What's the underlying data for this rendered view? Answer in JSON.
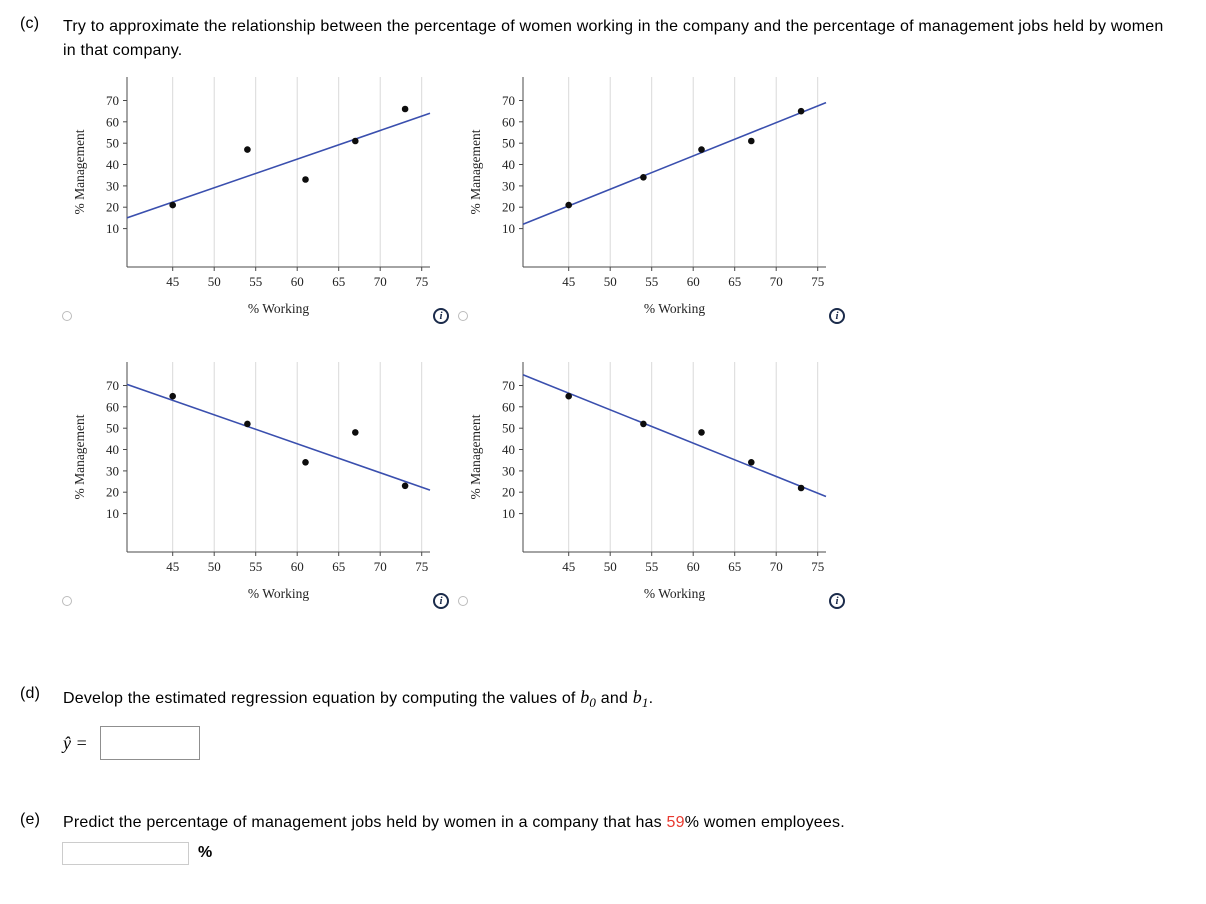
{
  "colors": {
    "trend": "#3a4fae",
    "point": "#0d0d0d",
    "grid": "#d9d9d9",
    "axis": "#4a4a4a",
    "highlight": "#e8392f"
  },
  "icons": {
    "info_glyph": "i"
  },
  "part_c": {
    "label": "(c)",
    "text": "Try to approximate the relationship between the percentage of women working in the company and the percentage of management jobs held by women in that company."
  },
  "chart_data": [
    {
      "type": "scatter",
      "xlabel": "% Working",
      "ylabel": "% Management",
      "xticks": [
        45,
        50,
        55,
        60,
        65,
        70,
        75
      ],
      "yticks": [
        10,
        20,
        30,
        40,
        50,
        60,
        70
      ],
      "xlim": [
        39.5,
        76
      ],
      "ylim": [
        -8,
        81
      ],
      "points": [
        [
          45,
          21
        ],
        [
          54,
          47
        ],
        [
          61,
          33
        ],
        [
          67,
          51
        ],
        [
          73,
          66
        ]
      ],
      "trend": {
        "x": [
          39.5,
          76
        ],
        "y": [
          15,
          64
        ]
      }
    },
    {
      "type": "scatter",
      "xlabel": "% Working",
      "ylabel": "% Management",
      "xticks": [
        45,
        50,
        55,
        60,
        65,
        70,
        75
      ],
      "yticks": [
        10,
        20,
        30,
        40,
        50,
        60,
        70
      ],
      "xlim": [
        39.5,
        76
      ],
      "ylim": [
        -8,
        81
      ],
      "points": [
        [
          45,
          21
        ],
        [
          54,
          34
        ],
        [
          61,
          47
        ],
        [
          67,
          51
        ],
        [
          73,
          65
        ]
      ],
      "trend": {
        "x": [
          39.5,
          76
        ],
        "y": [
          12,
          69
        ]
      }
    },
    {
      "type": "scatter",
      "xlabel": "% Working",
      "ylabel": "% Management",
      "xticks": [
        45,
        50,
        55,
        60,
        65,
        70,
        75
      ],
      "yticks": [
        10,
        20,
        30,
        40,
        50,
        60,
        70
      ],
      "xlim": [
        39.5,
        76
      ],
      "ylim": [
        -8,
        81
      ],
      "points": [
        [
          45,
          65
        ],
        [
          54,
          52
        ],
        [
          61,
          34
        ],
        [
          67,
          48
        ],
        [
          73,
          23
        ]
      ],
      "trend": {
        "x": [
          39.5,
          76
        ],
        "y": [
          70.5,
          21
        ]
      }
    },
    {
      "type": "scatter",
      "xlabel": "% Working",
      "ylabel": "% Management",
      "xticks": [
        45,
        50,
        55,
        60,
        65,
        70,
        75
      ],
      "yticks": [
        10,
        20,
        30,
        40,
        50,
        60,
        70
      ],
      "xlim": [
        39.5,
        76
      ],
      "ylim": [
        -8,
        81
      ],
      "points": [
        [
          45,
          65
        ],
        [
          54,
          52
        ],
        [
          61,
          48
        ],
        [
          67,
          34
        ],
        [
          73,
          22
        ]
      ],
      "trend": {
        "x": [
          39.5,
          76
        ],
        "y": [
          75,
          18
        ]
      }
    }
  ],
  "part_d": {
    "label": "(d)",
    "text": "Develop the estimated regression equation by computing the values of ",
    "b": "b",
    "sub0": "0",
    "and": " and ",
    "sub1": "1",
    "period": ".",
    "equation_label": "ŷ =",
    "answer_value": ""
  },
  "part_e": {
    "label": "(e)",
    "text_before": "Predict the percentage of management jobs held by women in a company that has ",
    "highlight_value": "59",
    "percent_sign": "%",
    "text_after": " women employees.",
    "answer_value": "",
    "unit": "%"
  }
}
